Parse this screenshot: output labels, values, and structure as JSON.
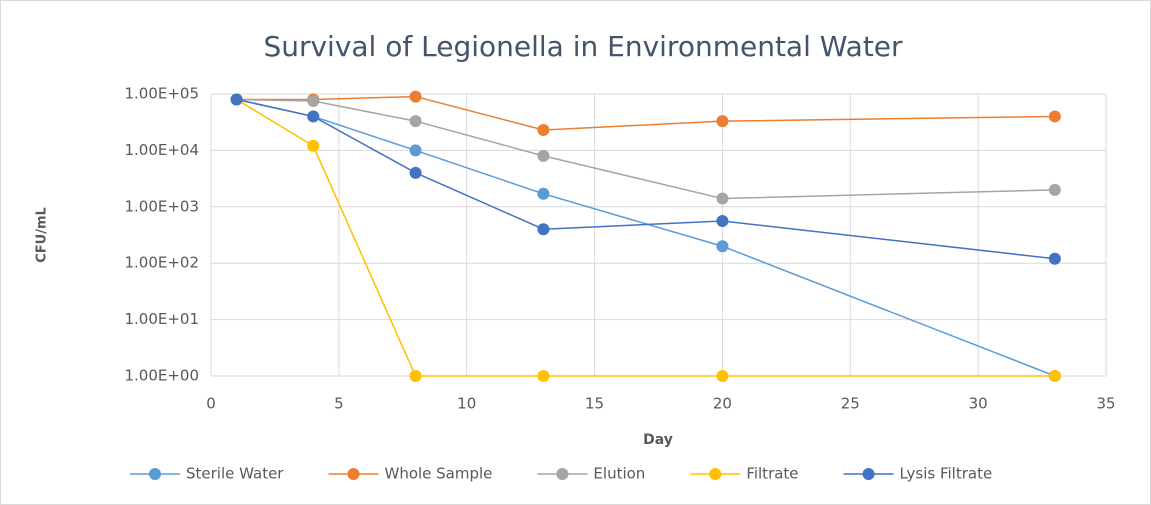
{
  "chart_data": {
    "type": "line",
    "title": "Survival of Legionella in Environmental Water",
    "x_label": "Day",
    "y_label": "CFU/mL",
    "x": [
      1,
      4,
      8,
      13,
      20,
      33
    ],
    "series": [
      {
        "name": "Sterile Water",
        "color": "#5b9bd5",
        "values": [
          80000,
          40000,
          10000,
          1700,
          200,
          1
        ]
      },
      {
        "name": "Whole Sample",
        "color": "#ed7d31",
        "values": [
          80000,
          80000,
          90000,
          23000,
          33000,
          40000
        ]
      },
      {
        "name": "Elution",
        "color": "#a5a5a5",
        "values": [
          80000,
          75000,
          33000,
          8000,
          1400,
          2000
        ]
      },
      {
        "name": "Filtrate",
        "color": "#ffc000",
        "values": [
          80000,
          12000,
          1,
          1,
          1,
          1
        ]
      },
      {
        "name": "Lysis Filtrate",
        "color": "#4472c4",
        "values": [
          80000,
          40000,
          4000,
          400,
          560,
          120
        ]
      }
    ],
    "xlim": [
      0,
      35
    ],
    "xticks": [
      0,
      5,
      10,
      15,
      20,
      25,
      30,
      35
    ],
    "ylim": [
      1,
      100000
    ],
    "y_log": true,
    "yticks": [
      {
        "value": 1,
        "label": "1.00E+00"
      },
      {
        "value": 10,
        "label": "1.00E+01"
      },
      {
        "value": 100,
        "label": "1.00E+02"
      },
      {
        "value": 1000,
        "label": "1.00E+03"
      },
      {
        "value": 10000,
        "label": "1.00E+04"
      },
      {
        "value": 100000,
        "label": "1.00E+05"
      }
    ],
    "grid": true,
    "legend": "bottom"
  }
}
